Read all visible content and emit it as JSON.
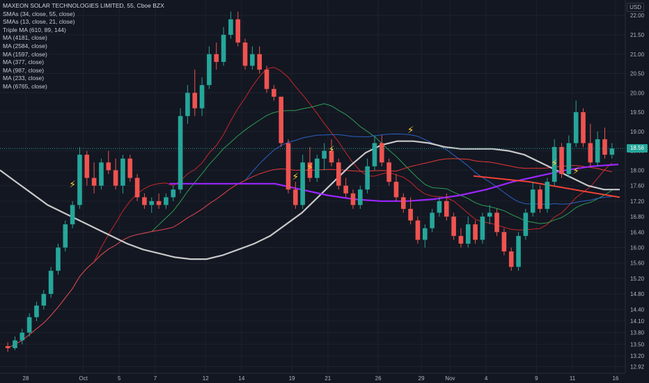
{
  "title": "MAXEON SOLAR TECHNOLOGIES LIMITED, 55, Cboe BZX",
  "currency": "USD",
  "last_price": "18.56",
  "indicators": [
    "SMAs (34, close, 55, close)",
    "SMAs (13, close, 21, close)",
    "Triple MA (610, 89, 144)",
    "MA (4181, close)",
    "MA (2584, close)",
    "MA (1597, close)",
    "MA (377, close)",
    "MA (987, close)",
    "MA (233, close)",
    "MA (6765, close)"
  ],
  "colors": {
    "background": "#131722",
    "grid": "#1e222d",
    "up": "#26a69a",
    "down": "#ef5350",
    "ma_gray": "#c8c8c8",
    "ma_purple": "#9c27ff",
    "ma_red": "#e53935",
    "ma_green": "#2e9d52",
    "ma_blue": "#2b62c4",
    "ma_thin_red": "#c62828"
  },
  "chart_data": {
    "type": "candlestick",
    "symbol": "MAXEON SOLAR TECHNOLOGIES LIMITED",
    "interval": "55",
    "exchange": "Cboe BZX",
    "ylim": [
      12.75,
      22.4
    ],
    "y_ticks": [
      "22.00",
      "21.50",
      "21.00",
      "20.50",
      "20.00",
      "19.50",
      "19.00",
      "18.50",
      "18.00",
      "17.60",
      "17.20",
      "16.80",
      "16.40",
      "16.00",
      "15.60",
      "15.20",
      "14.80",
      "14.40",
      "14.10",
      "13.80",
      "13.50",
      "13.20",
      "12.92"
    ],
    "x_ticks": [
      "28",
      "Oct",
      "5",
      "7",
      "12",
      "14",
      "19",
      "21",
      "26",
      "29",
      "Nov",
      "4",
      "9",
      "11",
      "16"
    ],
    "candles": [
      [
        0,
        13.45,
        13.55,
        13.3,
        13.4
      ],
      [
        1,
        13.4,
        13.7,
        13.35,
        13.6
      ],
      [
        2,
        13.6,
        13.9,
        13.5,
        13.8
      ],
      [
        3,
        13.8,
        14.3,
        13.7,
        14.2
      ],
      [
        4,
        14.2,
        14.6,
        14.1,
        14.5
      ],
      [
        5,
        14.5,
        14.9,
        14.4,
        14.8
      ],
      [
        6,
        14.8,
        15.5,
        14.7,
        15.4
      ],
      [
        7,
        15.4,
        16.1,
        15.3,
        16.0
      ],
      [
        8,
        16.0,
        16.7,
        15.9,
        16.6
      ],
      [
        9,
        16.6,
        17.2,
        16.5,
        17.1
      ],
      [
        10,
        17.1,
        18.6,
        17.0,
        18.4
      ],
      [
        11,
        18.4,
        18.5,
        17.6,
        17.8
      ],
      [
        12,
        17.8,
        18.2,
        17.4,
        17.6
      ],
      [
        13,
        17.6,
        18.3,
        17.5,
        18.2
      ],
      [
        14,
        18.2,
        18.5,
        17.9,
        18.0
      ],
      [
        15,
        18.0,
        18.3,
        17.5,
        17.6
      ],
      [
        16,
        17.6,
        18.4,
        17.4,
        18.3
      ],
      [
        17,
        18.3,
        18.4,
        17.7,
        17.8
      ],
      [
        18,
        17.8,
        17.9,
        17.2,
        17.3
      ],
      [
        19,
        17.3,
        17.4,
        17.0,
        17.1
      ],
      [
        20,
        17.1,
        17.3,
        16.9,
        17.2
      ],
      [
        21,
        17.2,
        17.4,
        17.0,
        17.1
      ],
      [
        22,
        17.1,
        17.4,
        17.0,
        17.3
      ],
      [
        23,
        17.3,
        17.6,
        17.2,
        17.5
      ],
      [
        24,
        17.5,
        19.6,
        17.4,
        19.4
      ],
      [
        25,
        19.4,
        20.2,
        19.2,
        20.0
      ],
      [
        26,
        20.0,
        20.6,
        19.4,
        19.6
      ],
      [
        27,
        19.6,
        20.4,
        19.4,
        20.2
      ],
      [
        28,
        20.2,
        21.2,
        20.1,
        21.0
      ],
      [
        29,
        21.0,
        21.3,
        20.6,
        20.8
      ],
      [
        30,
        20.8,
        21.7,
        20.7,
        21.5
      ],
      [
        31,
        21.5,
        22.1,
        21.4,
        21.9
      ],
      [
        32,
        21.9,
        22.1,
        21.2,
        21.3
      ],
      [
        33,
        21.3,
        21.4,
        20.6,
        20.7
      ],
      [
        34,
        20.7,
        21.2,
        20.6,
        21.0
      ],
      [
        35,
        21.0,
        21.2,
        20.5,
        20.6
      ],
      [
        36,
        20.6,
        20.7,
        20.0,
        20.1
      ],
      [
        37,
        20.1,
        20.2,
        19.8,
        19.9
      ],
      [
        38,
        19.9,
        19.9,
        18.6,
        18.7
      ],
      [
        39,
        18.7,
        18.8,
        17.4,
        17.5
      ],
      [
        40,
        17.5,
        17.7,
        17.0,
        17.1
      ],
      [
        41,
        17.1,
        18.4,
        17.0,
        18.2
      ],
      [
        42,
        18.2,
        18.6,
        17.7,
        17.8
      ],
      [
        43,
        17.8,
        18.4,
        17.7,
        18.3
      ],
      [
        44,
        18.3,
        18.7,
        18.0,
        18.5
      ],
      [
        45,
        18.5,
        18.8,
        18.1,
        18.2
      ],
      [
        46,
        18.2,
        18.3,
        17.5,
        17.6
      ],
      [
        47,
        17.6,
        17.8,
        17.3,
        17.4
      ],
      [
        48,
        17.4,
        17.5,
        17.0,
        17.1
      ],
      [
        49,
        17.1,
        17.6,
        17.0,
        17.5
      ],
      [
        50,
        17.5,
        18.3,
        17.4,
        18.1
      ],
      [
        51,
        18.1,
        18.9,
        18.0,
        18.7
      ],
      [
        52,
        18.7,
        18.9,
        18.1,
        18.2
      ],
      [
        53,
        18.2,
        18.3,
        17.6,
        17.7
      ],
      [
        54,
        17.7,
        17.9,
        17.2,
        17.3
      ],
      [
        55,
        17.3,
        17.4,
        16.9,
        17.0
      ],
      [
        56,
        17.0,
        17.3,
        16.6,
        16.7
      ],
      [
        57,
        16.7,
        16.8,
        16.1,
        16.2
      ],
      [
        58,
        16.2,
        16.6,
        16.0,
        16.5
      ],
      [
        59,
        16.5,
        17.0,
        16.4,
        16.9
      ],
      [
        60,
        16.9,
        17.3,
        16.8,
        17.2
      ],
      [
        61,
        17.2,
        17.4,
        16.7,
        16.8
      ],
      [
        62,
        16.8,
        16.9,
        16.2,
        16.3
      ],
      [
        63,
        16.3,
        16.5,
        16.0,
        16.1
      ],
      [
        64,
        16.1,
        16.8,
        16.0,
        16.6
      ],
      [
        65,
        16.6,
        16.7,
        16.1,
        16.2
      ],
      [
        66,
        16.2,
        16.9,
        16.1,
        16.8
      ],
      [
        67,
        16.8,
        17.1,
        16.6,
        16.9
      ],
      [
        68,
        16.9,
        17.0,
        16.3,
        16.4
      ],
      [
        69,
        16.4,
        16.5,
        15.8,
        15.9
      ],
      [
        70,
        15.9,
        16.0,
        15.4,
        15.5
      ],
      [
        71,
        15.5,
        16.4,
        15.4,
        16.3
      ],
      [
        72,
        16.3,
        17.0,
        16.2,
        16.9
      ],
      [
        73,
        16.9,
        17.7,
        16.8,
        17.5
      ],
      [
        74,
        17.5,
        17.6,
        16.9,
        17.0
      ],
      [
        75,
        17.0,
        17.8,
        16.9,
        17.7
      ],
      [
        76,
        17.7,
        18.8,
        17.6,
        18.6
      ],
      [
        77,
        18.6,
        18.7,
        17.8,
        17.9
      ],
      [
        78,
        17.9,
        18.9,
        17.8,
        18.7
      ],
      [
        79,
        18.7,
        19.8,
        18.6,
        19.5
      ],
      [
        80,
        19.5,
        19.6,
        18.6,
        18.7
      ],
      [
        81,
        18.7,
        19.2,
        18.1,
        18.2
      ],
      [
        82,
        18.2,
        19.0,
        18.1,
        18.8
      ],
      [
        83,
        18.8,
        19.1,
        18.3,
        18.4
      ],
      [
        84,
        18.4,
        18.7,
        18.3,
        18.56
      ]
    ]
  }
}
